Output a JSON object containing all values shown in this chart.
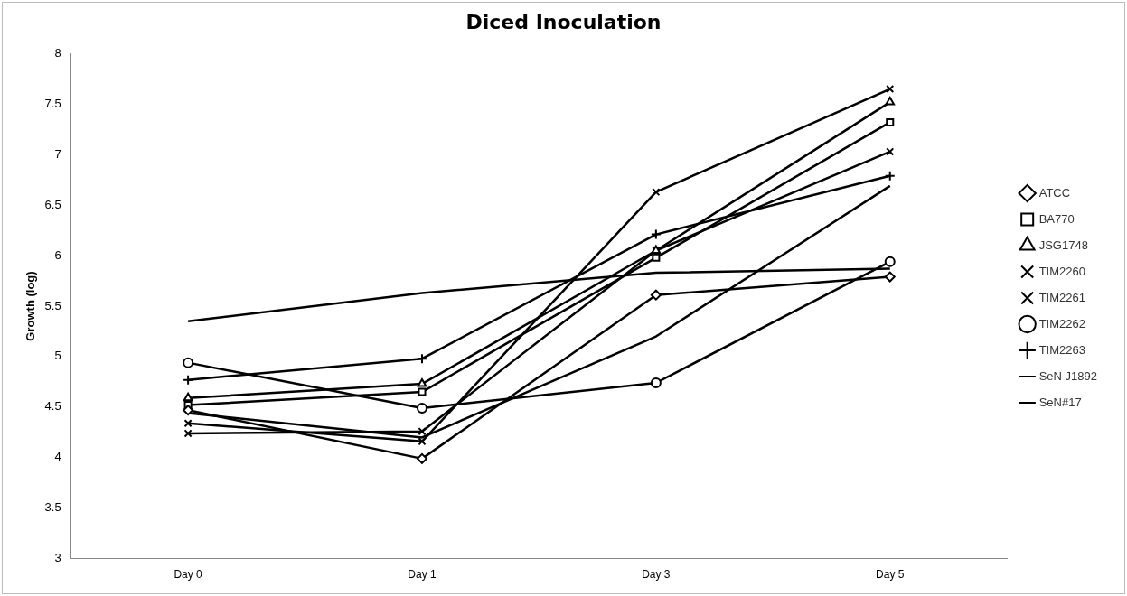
{
  "chart_data": {
    "type": "line",
    "title": "Diced Inoculation",
    "ylabel": "Growth (log)",
    "categories": [
      "Day 0",
      "Day 1",
      "Day 3",
      "Day 5"
    ],
    "ylim": [
      3,
      8
    ],
    "yticks": [
      3,
      3.5,
      4,
      4.5,
      5,
      5.5,
      6,
      6.5,
      7,
      7.5,
      8
    ],
    "grid": false,
    "legend": "right",
    "line_style": "solid",
    "series": [
      {
        "name": "ATCC",
        "color": "#000000",
        "marker": "diamond",
        "values": [
          4.47,
          3.99,
          5.61,
          5.79
        ]
      },
      {
        "name": "BA770",
        "color": "#000000",
        "marker": "square",
        "values": [
          4.52,
          4.65,
          5.98,
          7.32
        ]
      },
      {
        "name": "JSG1748",
        "color": "#000000",
        "marker": "triangle",
        "values": [
          4.59,
          4.73,
          6.05,
          7.52
        ]
      },
      {
        "name": "TIM2260",
        "color": "#000000",
        "marker": "cross",
        "values": [
          4.24,
          4.26,
          6.05,
          7.03
        ]
      },
      {
        "name": "TIM2261",
        "color": "#000000",
        "marker": "cross",
        "values": [
          4.34,
          4.16,
          6.63,
          7.65
        ]
      },
      {
        "name": "TIM2262",
        "color": "#000000",
        "marker": "circle",
        "values": [
          4.94,
          4.49,
          4.74,
          5.94
        ]
      },
      {
        "name": "TIM2263",
        "color": "#000000",
        "marker": "plus",
        "values": [
          4.77,
          4.98,
          6.21,
          6.79
        ]
      },
      {
        "name": "SeN J1892",
        "color": "#000000",
        "marker": "none",
        "values": [
          4.44,
          4.2,
          5.2,
          6.69
        ]
      },
      {
        "name": "SeN#17",
        "color": "#000000",
        "marker": "none",
        "values": [
          5.35,
          5.63,
          5.83,
          5.87
        ]
      }
    ]
  }
}
